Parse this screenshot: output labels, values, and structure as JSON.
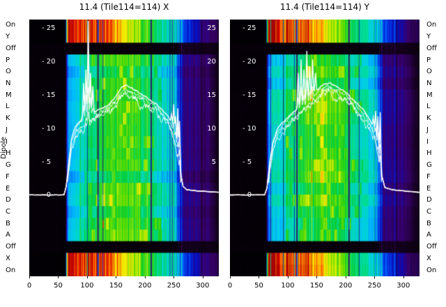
{
  "figure": {
    "ylabel": "Dipole",
    "bg": "#ffffff"
  },
  "chart_data": {
    "type": "heatmap",
    "panels": [
      {
        "title": "11.4 (Tile114=114) X",
        "curve": {
          "base": [
            [
              0,
              0.2
            ],
            [
              60,
              0.2
            ],
            [
              64,
              1.5
            ],
            [
              68,
              5
            ],
            [
              73,
              8.5
            ],
            [
              80,
              10.5
            ],
            [
              90,
              11.5
            ],
            [
              100,
              12
            ],
            [
              110,
              12.5
            ],
            [
              120,
              13
            ],
            [
              130,
              13.4
            ],
            [
              140,
              14
            ],
            [
              150,
              15
            ],
            [
              160,
              16.2
            ],
            [
              168,
              16.6
            ],
            [
              178,
              16.2
            ],
            [
              190,
              15.6
            ],
            [
              200,
              15
            ],
            [
              210,
              14.4
            ],
            [
              220,
              13.8
            ],
            [
              230,
              13
            ],
            [
              240,
              12
            ],
            [
              248,
              10.5
            ],
            [
              255,
              8
            ],
            [
              261,
              4
            ],
            [
              266,
              1.5
            ],
            [
              272,
              1
            ],
            [
              290,
              0.8
            ],
            [
              328,
              0.6
            ]
          ],
          "spikes": [
            [
              94,
              17
            ],
            [
              98,
              19
            ],
            [
              102,
              26.3
            ],
            [
              106,
              18.5
            ],
            [
              110,
              16.5
            ],
            [
              246,
              12.3
            ],
            [
              250,
              13.8
            ],
            [
              253,
              12.0
            ],
            [
              257,
              13.2
            ],
            [
              260,
              11.3
            ]
          ]
        },
        "features": {
          "dark_cols": [
            118,
            119,
            127,
            210,
            211
          ],
          "bright_cols": [
            250,
            254,
            259,
            263
          ],
          "red_mark": {
            "ch": 128,
            "row": 17
          }
        },
        "y_ticks_right": [
          25,
          20,
          15,
          10,
          5
        ]
      },
      {
        "title": "11.4 (Tile114=114) Y",
        "curve": {
          "base": [
            [
              0,
              0.2
            ],
            [
              60,
              0.2
            ],
            [
              64,
              1.2
            ],
            [
              68,
              4.5
            ],
            [
              74,
              8
            ],
            [
              82,
              10
            ],
            [
              92,
              11.2
            ],
            [
              102,
              12
            ],
            [
              112,
              12.8
            ],
            [
              122,
              13.6
            ],
            [
              132,
              14.4
            ],
            [
              142,
              15.2
            ],
            [
              152,
              16
            ],
            [
              162,
              16.8
            ],
            [
              172,
              17
            ],
            [
              182,
              16.6
            ],
            [
              192,
              16
            ],
            [
              202,
              15.4
            ],
            [
              212,
              14.6
            ],
            [
              222,
              13.8
            ],
            [
              232,
              12.8
            ],
            [
              242,
              11.5
            ],
            [
              250,
              10
            ],
            [
              257,
              7
            ],
            [
              263,
              3
            ],
            [
              268,
              1.3
            ],
            [
              280,
              1
            ],
            [
              300,
              0.8
            ],
            [
              328,
              0.6
            ]
          ],
          "spikes": [
            [
              118,
              18.5
            ],
            [
              123,
              20.5
            ],
            [
              128,
              19
            ],
            [
              133,
              21.8
            ],
            [
              138,
              19.5
            ],
            [
              143,
              20.5
            ],
            [
              148,
              18.5
            ],
            [
              248,
              11.8
            ],
            [
              252,
              12.8
            ],
            [
              256,
              12
            ],
            [
              260,
              12.6
            ]
          ]
        },
        "features": {
          "dark_cols": [
            115,
            116,
            205,
            206
          ],
          "bright_cols": [
            249,
            253,
            258,
            262
          ]
        }
      }
    ],
    "dipole_labels": [
      "On",
      "Y",
      "Off",
      "P",
      "O",
      "N",
      "M",
      "L",
      "K",
      "J",
      "I",
      "H",
      "G",
      "F",
      "E",
      "D",
      "C",
      "B",
      "A",
      "Off",
      "X",
      "On"
    ],
    "row_types": [
      "band",
      "band",
      "off",
      "dipole",
      "dipole",
      "dipole",
      "dipole",
      "dipole",
      "dipole",
      "dipole",
      "dipole",
      "dipole",
      "dipole",
      "dipole",
      "dipole",
      "dipole",
      "dipole",
      "dipole",
      "dipole",
      "off",
      "band",
      "band"
    ],
    "x_ticks": [
      0,
      50,
      100,
      150,
      200,
      250,
      300
    ],
    "y_ticks_left": [
      25,
      20,
      15,
      10,
      5,
      0
    ],
    "x_range": [
      0,
      328
    ],
    "curve_axis": {
      "min": -12.0,
      "max": 26.5
    },
    "colormap": [
      [
        0,
        "#000000"
      ],
      [
        0.07,
        "#160020"
      ],
      [
        0.13,
        "#3a006f"
      ],
      [
        0.2,
        "#0012c8"
      ],
      [
        0.28,
        "#0066ff"
      ],
      [
        0.36,
        "#00c8ff"
      ],
      [
        0.44,
        "#00e0a0"
      ],
      [
        0.52,
        "#00cc33"
      ],
      [
        0.6,
        "#55dd00"
      ],
      [
        0.68,
        "#ccee00"
      ],
      [
        0.76,
        "#ffee00"
      ],
      [
        0.84,
        "#ff9900"
      ],
      [
        0.92,
        "#ff2200"
      ],
      [
        1,
        "#aa0000"
      ]
    ],
    "intensity_profiles": {
      "band": [
        [
          0,
          0.01
        ],
        [
          62,
          0.01
        ],
        [
          66,
          0.95
        ],
        [
          130,
          0.9
        ],
        [
          150,
          0.82
        ],
        [
          175,
          0.68
        ],
        [
          200,
          0.56
        ],
        [
          230,
          0.44
        ],
        [
          255,
          0.34
        ],
        [
          270,
          0.24
        ],
        [
          290,
          0.17
        ],
        [
          315,
          0.12
        ],
        [
          328,
          0.1
        ]
      ],
      "dipole": [
        [
          0,
          0.02
        ],
        [
          62,
          0.02
        ],
        [
          66,
          0.3
        ],
        [
          80,
          0.38
        ],
        [
          100,
          0.45
        ],
        [
          120,
          0.5
        ],
        [
          140,
          0.55
        ],
        [
          160,
          0.58
        ],
        [
          180,
          0.55
        ],
        [
          200,
          0.5
        ],
        [
          220,
          0.44
        ],
        [
          240,
          0.38
        ],
        [
          252,
          0.34
        ],
        [
          258,
          0.22
        ],
        [
          266,
          0.15
        ],
        [
          290,
          0.13
        ],
        [
          310,
          0.12
        ],
        [
          320,
          0.08
        ],
        [
          328,
          0.05
        ]
      ],
      "off": [
        [
          0,
          0.02
        ],
        [
          255,
          0.03
        ],
        [
          262,
          0.07
        ],
        [
          315,
          0.05
        ],
        [
          328,
          0.03
        ]
      ]
    },
    "spike_factors": [
      1,
      0.8,
      0.62,
      0.48
    ],
    "n_lines": 4
  }
}
